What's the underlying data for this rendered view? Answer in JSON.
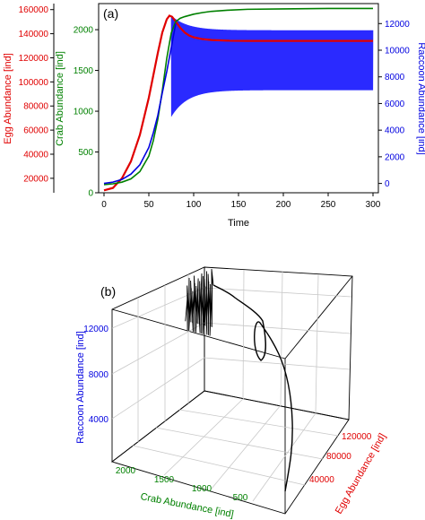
{
  "chart_data": [
    {
      "panel_label": "(a)",
      "type": "line",
      "xlabel": "Time",
      "x_ticks": [
        0,
        50,
        100,
        150,
        200,
        250,
        300
      ],
      "xlim": [
        0,
        300
      ],
      "axes": {
        "egg": {
          "label": "Egg Abundance [ind]",
          "color": "#e00000",
          "ticks": [
            20000,
            40000,
            60000,
            80000,
            100000,
            120000,
            140000,
            160000
          ],
          "ylim": [
            8000,
            165000
          ]
        },
        "crab": {
          "label": "Crab Abundance [ind]",
          "color": "#008000",
          "ticks": [
            0,
            500,
            1000,
            1500,
            2000
          ],
          "ylim": [
            0,
            2320
          ]
        },
        "raccoon": {
          "label": "Raccoon Abundance [ind]",
          "color": "#0000e0",
          "ticks": [
            0,
            2000,
            4000,
            6000,
            8000,
            10000,
            12000
          ],
          "ylim": [
            -700,
            13500
          ]
        }
      },
      "series": [
        {
          "axis": "egg",
          "color": "#e00000",
          "x": [
            0,
            10,
            20,
            30,
            40,
            50,
            60,
            65,
            70,
            73,
            76,
            80,
            85,
            90,
            95,
            100,
            110,
            120,
            140,
            160,
            200,
            250,
            300
          ],
          "y": [
            10000,
            12000,
            20000,
            34000,
            56000,
            87000,
            124000,
            141000,
            152000,
            155000,
            154000,
            150000,
            145000,
            141000,
            138500,
            137000,
            135500,
            134800,
            134200,
            134000,
            134000,
            134000,
            134000
          ]
        },
        {
          "axis": "crab",
          "color": "#008000",
          "x": [
            0,
            10,
            20,
            30,
            40,
            50,
            55,
            60,
            65,
            70,
            75,
            80,
            85,
            90,
            100,
            110,
            120,
            140,
            160,
            200,
            250,
            300
          ],
          "y": [
            100,
            110,
            130,
            170,
            260,
            450,
            640,
            900,
            1250,
            1650,
            1960,
            2100,
            2140,
            2160,
            2190,
            2210,
            2225,
            2240,
            2250,
            2255,
            2260,
            2260
          ]
        },
        {
          "axis": "raccoon",
          "color": "#0000e0",
          "x": [
            0,
            10,
            20,
            30,
            40,
            50,
            55,
            60,
            65,
            70,
            75,
            80
          ],
          "y": [
            0,
            100,
            300,
            700,
            1400,
            2700,
            3800,
            5100,
            6800,
            8400,
            10200,
            12000
          ]
        }
      ],
      "raccoon_oscillation": {
        "start_x": 75,
        "end_x": 300,
        "final_band": [
          7000,
          11500
        ],
        "initial_band": [
          5000,
          12600
        ]
      }
    },
    {
      "panel_label": "(b)",
      "type": "line3d",
      "axes": {
        "crab": {
          "label": "Crab Abundance [ind]",
          "color": "#008000",
          "ticks": [
            500,
            1000,
            1500,
            2000
          ]
        },
        "egg": {
          "label": "Egg Abundance [ind]",
          "color": "#e00000",
          "ticks": [
            40000,
            80000,
            120000
          ]
        },
        "raccoon": {
          "label": "Raccoon Abundance [ind]",
          "color": "#0000e0",
          "ticks": [
            4000,
            8000,
            12000
          ]
        }
      },
      "trajectory": {
        "color": "#000000",
        "start": {
          "crab": 100,
          "egg": 10000,
          "raccoon": 0
        },
        "end_band_raccoon": [
          7000,
          11500
        ],
        "end_crab": 2260,
        "end_egg": 134000
      }
    }
  ]
}
